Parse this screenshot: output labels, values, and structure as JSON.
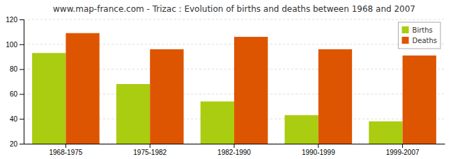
{
  "chart_data": {
    "type": "bar",
    "title": "www.map-france.com - Trizac : Evolution of births and deaths between 1968 and 2007",
    "categories": [
      "1968-1975",
      "1975-1982",
      "1982-1990",
      "1990-1999",
      "1999-2007"
    ],
    "series": [
      {
        "name": "Births",
        "color": "#aacc11",
        "values": [
          93,
          68,
          54,
          43,
          38
        ]
      },
      {
        "name": "Deaths",
        "color": "#dd5500",
        "values": [
          109,
          96,
          106,
          96,
          91
        ]
      }
    ],
    "ylim": [
      20,
      120
    ],
    "yticks": [
      20,
      40,
      60,
      80,
      100,
      120
    ],
    "grid": true,
    "legend": "upper right"
  }
}
